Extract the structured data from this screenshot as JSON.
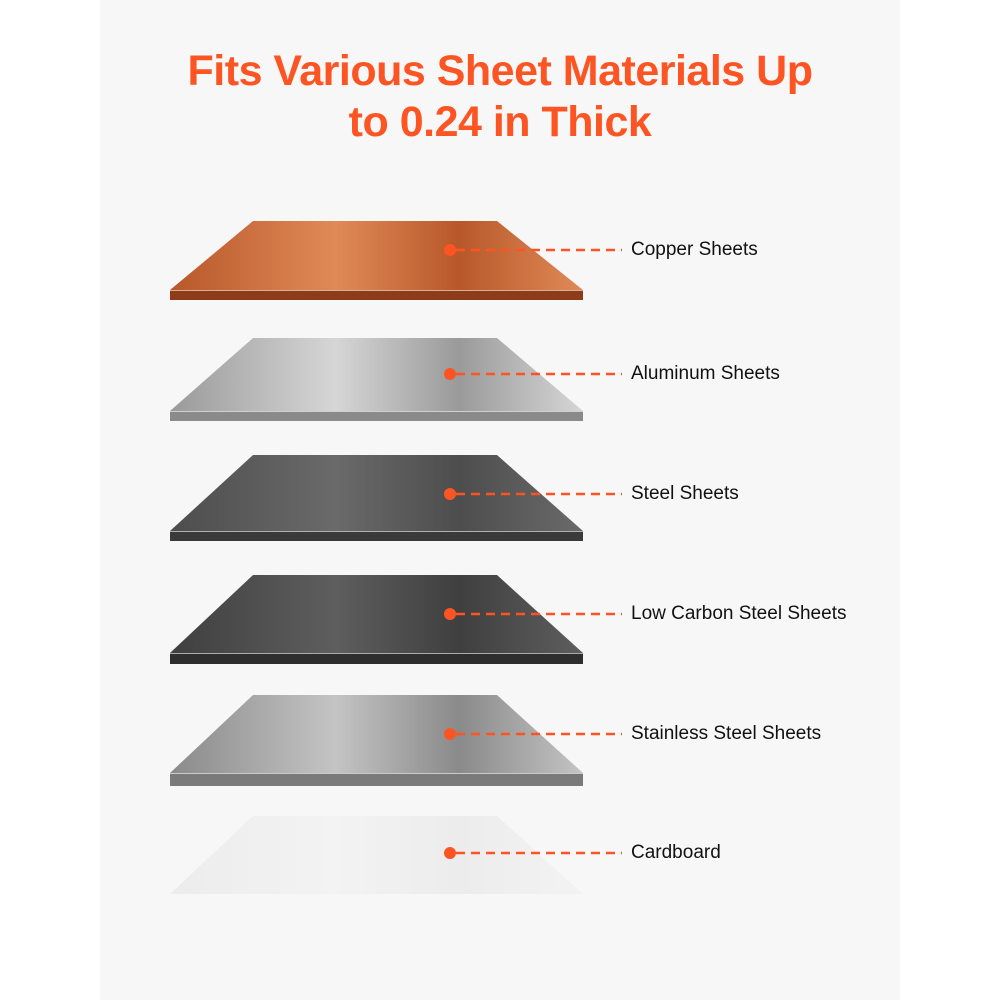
{
  "title": {
    "line1": "Fits Various Sheet Materials Up",
    "line2": "to 0.24 in Thick"
  },
  "accent_color": "#fc5523",
  "materials": [
    {
      "label": "Copper Sheets",
      "colors": [
        "#b8582a",
        "#e08a58",
        "#8e3c17"
      ]
    },
    {
      "label": "Aluminum Sheets",
      "colors": [
        "#9a9a9a",
        "#d6d6d6",
        "#8a8a8a"
      ]
    },
    {
      "label": "Steel Sheets",
      "colors": [
        "#4d4d4d",
        "#6a6a6a",
        "#3a3a3a"
      ]
    },
    {
      "label": "Low Carbon Steel Sheets",
      "colors": [
        "#3f3f3f",
        "#5e5e5e",
        "#2e2e2e"
      ]
    },
    {
      "label": "Stainless Steel Sheets",
      "colors": [
        "#8a8a8a",
        "#c4c4c4",
        "#7a7a7a"
      ]
    },
    {
      "label": "Cardboard",
      "colors": [
        "#ececec",
        "#f3f3f3",
        "#eeeeee"
      ]
    }
  ]
}
